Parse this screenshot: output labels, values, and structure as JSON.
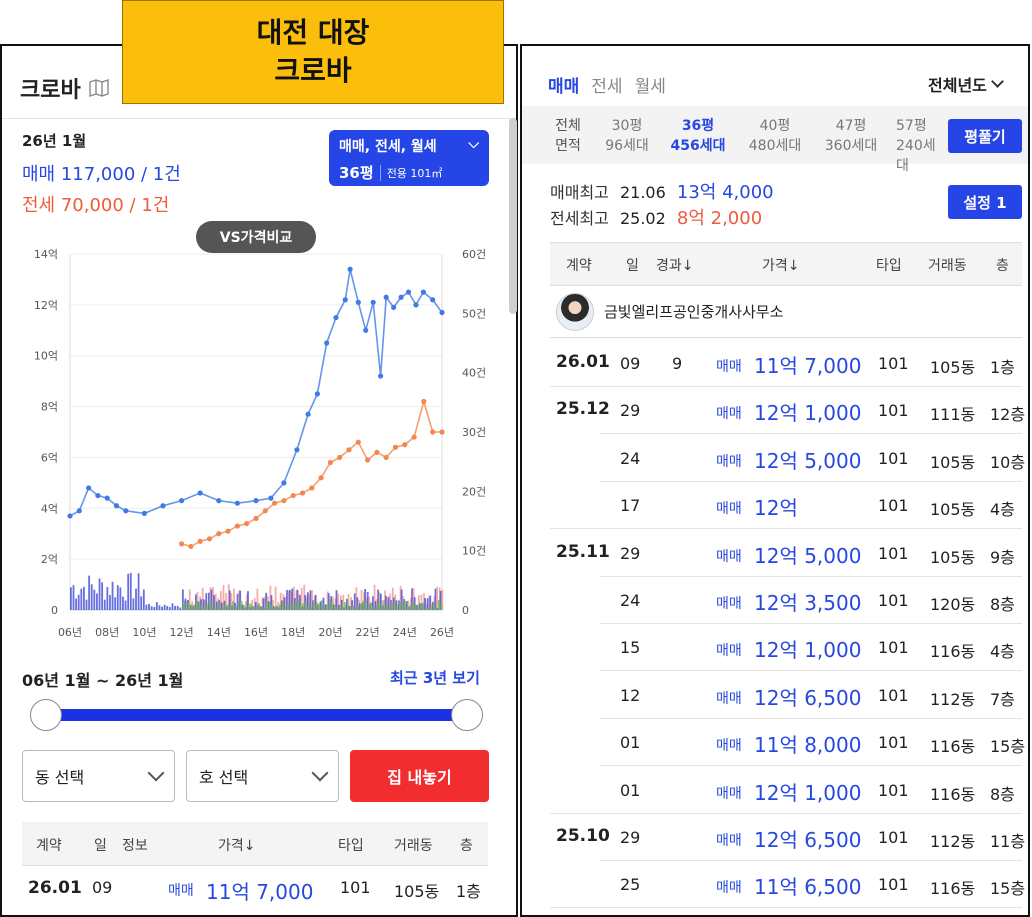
{
  "banner": {
    "line1": "대전 대장",
    "line2": "크로바"
  },
  "complex": {
    "name": "크로바",
    "icon": "map-icon"
  },
  "summary": {
    "month": "26년 1월",
    "sale": "매매 117,000 / 1건",
    "jeonse": "전세 70,000 / 1건"
  },
  "filter": {
    "types": "매매, 전세, 월세",
    "size": "36평",
    "area": "전용 101㎡"
  },
  "vs_button": "VS가격비교",
  "chart_data": {
    "type": "line",
    "x_tick_labels": [
      "06년",
      "08년",
      "10년",
      "12년",
      "14년",
      "16년",
      "18년",
      "20년",
      "22년",
      "24년",
      "26년"
    ],
    "y_left_ticks": [
      "0",
      "2억",
      "4억",
      "6억",
      "8억",
      "10억",
      "12억",
      "14억"
    ],
    "y_left_range": [
      0,
      14
    ],
    "y_right_ticks": [
      "0",
      "10건",
      "20건",
      "30건",
      "40건",
      "50건",
      "60건"
    ],
    "y_right_range": [
      0,
      60
    ],
    "series": [
      {
        "x": [
          2006.0,
          2006.5,
          2007.0,
          2007.5,
          2008.0,
          2008.5,
          2009.0,
          2010.0,
          2011.0,
          2012.0,
          2013.0,
          2014.0,
          2015.0,
          2016.0,
          2016.8,
          2017.5,
          2018.2,
          2018.8,
          2019.3,
          2019.8,
          2020.3,
          2020.8,
          2021.06,
          2021.5,
          2021.9,
          2022.3,
          2022.7,
          2023.0,
          2023.4,
          2023.8,
          2024.2,
          2024.6,
          2025.0,
          2025.5,
          2026.0
        ],
        "values": [
          3.7,
          3.9,
          4.8,
          4.5,
          4.4,
          4.1,
          3.9,
          3.8,
          4.1,
          4.3,
          4.6,
          4.3,
          4.2,
          4.3,
          4.4,
          5.0,
          6.3,
          7.7,
          8.5,
          10.5,
          11.5,
          12.2,
          13.4,
          12.1,
          11.0,
          12.1,
          9.2,
          12.3,
          11.9,
          12.3,
          12.5,
          12.0,
          12.5,
          12.2,
          11.7
        ]
      },
      {
        "x": [
          2012.0,
          2012.5,
          2013.0,
          2013.5,
          2014.0,
          2014.5,
          2015.0,
          2015.5,
          2016.0,
          2016.5,
          2017.0,
          2017.5,
          2018.0,
          2018.5,
          2019.0,
          2019.5,
          2020.0,
          2020.5,
          2021.0,
          2021.5,
          2022.0,
          2022.5,
          2023.0,
          2023.5,
          2024.0,
          2024.5,
          2025.02,
          2025.5,
          2026.0
        ],
        "values": [
          2.6,
          2.5,
          2.7,
          2.8,
          3.0,
          3.1,
          3.3,
          3.4,
          3.6,
          3.9,
          4.2,
          4.3,
          4.5,
          4.6,
          4.8,
          5.2,
          5.8,
          6.0,
          6.3,
          6.6,
          5.9,
          6.2,
          6.0,
          6.4,
          6.5,
          6.8,
          8.2,
          7.0,
          7.0
        ]
      }
    ]
  },
  "range": {
    "label": "06년 1월 ~ 26년 1월",
    "recent_link": "최근 3년 보기"
  },
  "selects": {
    "dong": "동 선택",
    "ho": "호 선택",
    "sell_button": "집 내놓기"
  },
  "mini_table": {
    "headers": [
      "계약",
      "일",
      "정보",
      "가격↓",
      "타입",
      "거래동",
      "층"
    ],
    "row": {
      "ym": "26.01",
      "day": "09",
      "kind": "매매",
      "price": "11억 7,000",
      "type": "101",
      "dong": "105동",
      "floor": "1층"
    }
  },
  "right": {
    "tabs": [
      "매매",
      "전세",
      "월세"
    ],
    "year_select": "전체년도",
    "areas": [
      {
        "top": "전체",
        "bottom": "면적"
      },
      {
        "top": "30평",
        "bottom": "96세대"
      },
      {
        "top": "36평",
        "bottom": "456세대"
      },
      {
        "top": "40평",
        "bottom": "480세대"
      },
      {
        "top": "47평",
        "bottom": "360세대"
      },
      {
        "top": "57평",
        "bottom": "240세대"
      }
    ],
    "pyeong_button": "평풀기",
    "max_sale": {
      "label": "매매최고",
      "date": "21.06",
      "price": "13억 4,000"
    },
    "max_jeonse": {
      "label": "전세최고",
      "date": "25.02",
      "price": "8억 2,000"
    },
    "setting_button": "설정 1",
    "headers": [
      "계약",
      "일",
      "경과↓",
      "가격↓",
      "타입",
      "거래동",
      "층"
    ],
    "agent": "금빛엘리프공인중개사사무소",
    "rows": [
      {
        "ym": "26.01",
        "day": "09",
        "elapsed": "9",
        "kind": "매매",
        "price": "11억 7,000",
        "type": "101",
        "dong": "105동",
        "floor": "1층"
      },
      {
        "ym": "25.12",
        "day": "29",
        "elapsed": "",
        "kind": "매매",
        "price": "12억 1,000",
        "type": "101",
        "dong": "111동",
        "floor": "12층"
      },
      {
        "ym": "",
        "day": "24",
        "elapsed": "",
        "kind": "매매",
        "price": "12억 5,000",
        "type": "101",
        "dong": "105동",
        "floor": "10층"
      },
      {
        "ym": "",
        "day": "17",
        "elapsed": "",
        "kind": "매매",
        "price": "12억",
        "type": "101",
        "dong": "105동",
        "floor": "4층"
      },
      {
        "ym": "25.11",
        "day": "29",
        "elapsed": "",
        "kind": "매매",
        "price": "12억 5,000",
        "type": "101",
        "dong": "105동",
        "floor": "9층"
      },
      {
        "ym": "",
        "day": "24",
        "elapsed": "",
        "kind": "매매",
        "price": "12억 3,500",
        "type": "101",
        "dong": "120동",
        "floor": "8층"
      },
      {
        "ym": "",
        "day": "15",
        "elapsed": "",
        "kind": "매매",
        "price": "12억 1,000",
        "type": "101",
        "dong": "116동",
        "floor": "4층"
      },
      {
        "ym": "",
        "day": "12",
        "elapsed": "",
        "kind": "매매",
        "price": "12억 6,500",
        "type": "101",
        "dong": "112동",
        "floor": "7층"
      },
      {
        "ym": "",
        "day": "01",
        "elapsed": "",
        "kind": "매매",
        "price": "11억 8,000",
        "type": "101",
        "dong": "116동",
        "floor": "15층"
      },
      {
        "ym": "",
        "day": "01",
        "elapsed": "",
        "kind": "매매",
        "price": "12억 1,000",
        "type": "101",
        "dong": "116동",
        "floor": "8층"
      },
      {
        "ym": "25.10",
        "day": "29",
        "elapsed": "",
        "kind": "매매",
        "price": "12억 6,500",
        "type": "101",
        "dong": "112동",
        "floor": "11층"
      },
      {
        "ym": "",
        "day": "25",
        "elapsed": "",
        "kind": "매매",
        "price": "11억 6,500",
        "type": "101",
        "dong": "116동",
        "floor": "15층"
      }
    ]
  },
  "colors": {
    "accent": "#2645e6",
    "sale": "#3f7be6",
    "jeonse": "#f2884d",
    "red_button": "#f22d2f",
    "banner": "#fbbf0b"
  }
}
